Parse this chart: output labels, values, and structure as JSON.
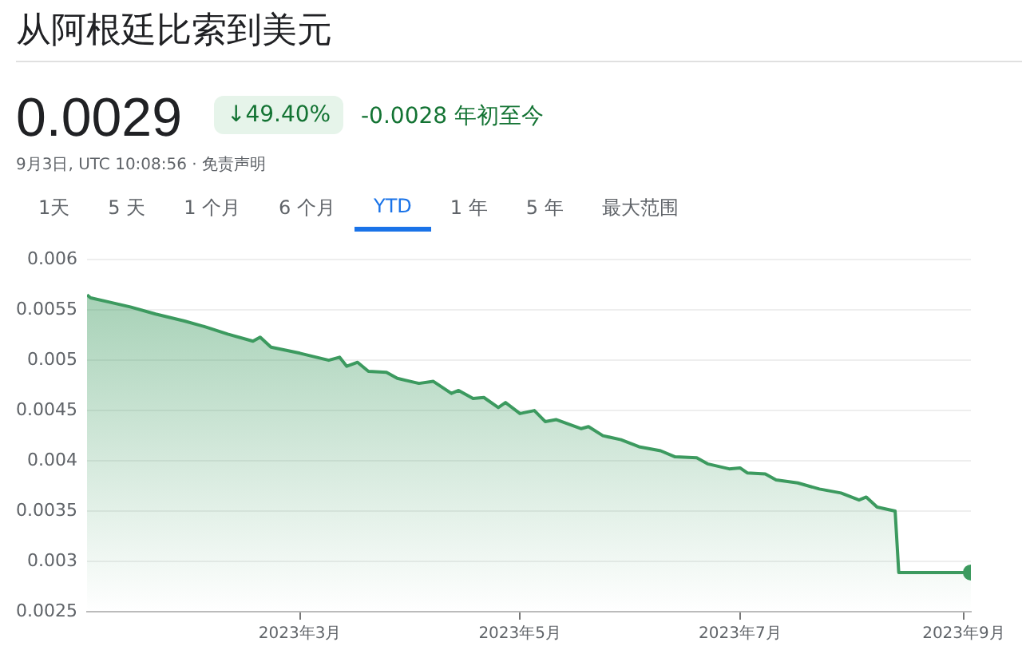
{
  "chart_data": {
    "type": "area",
    "title": "从阿根廷比索到美元",
    "annotations": [
      "0.0029",
      "↓49.40%",
      "-0.0028 年初至今",
      "9月3日, UTC 10:08:56 · 免责声明",
      "1天",
      "5 天",
      "1 个月",
      "6 个月",
      "YTD",
      "1 年",
      "5 年",
      "最大范围"
    ],
    "x": [
      "2023-01-01",
      "2023-01-02",
      "2023-01-07",
      "2023-01-13",
      "2023-01-20",
      "2023-01-28",
      "2023-02-03",
      "2023-02-09",
      "2023-02-16",
      "2023-02-18",
      "2023-02-21",
      "2023-03-01",
      "2023-03-09",
      "2023-03-12",
      "2023-03-14",
      "2023-03-17",
      "2023-03-20",
      "2023-03-25",
      "2023-03-28",
      "2023-04-03",
      "2023-04-07",
      "2023-04-12",
      "2023-04-14",
      "2023-04-18",
      "2023-04-21",
      "2023-04-25",
      "2023-04-27",
      "2023-05-01",
      "2023-05-05",
      "2023-05-08",
      "2023-05-11",
      "2023-05-18",
      "2023-05-20",
      "2023-05-24",
      "2023-05-29",
      "2023-06-03",
      "2023-06-09",
      "2023-06-13",
      "2023-06-19",
      "2023-06-22",
      "2023-06-28",
      "2023-07-01",
      "2023-07-03",
      "2023-07-08",
      "2023-07-11",
      "2023-07-17",
      "2023-07-23",
      "2023-07-29",
      "2023-08-03",
      "2023-08-05",
      "2023-08-08",
      "2023-08-13",
      "2023-08-14",
      "2023-09-03"
    ],
    "series": [
      {
        "color": "#3c9a5f",
        "values": [
          0.00565,
          0.00562,
          0.00558,
          0.00553,
          0.00546,
          0.00539,
          0.00533,
          0.00526,
          0.00519,
          0.00523,
          0.00513,
          0.00507,
          0.005,
          0.00503,
          0.00494,
          0.00498,
          0.00489,
          0.00488,
          0.00482,
          0.00477,
          0.00479,
          0.00467,
          0.0047,
          0.00462,
          0.00463,
          0.00453,
          0.00458,
          0.00447,
          0.0045,
          0.00439,
          0.00441,
          0.00432,
          0.00434,
          0.00425,
          0.00421,
          0.00414,
          0.0041,
          0.00404,
          0.00403,
          0.00397,
          0.00392,
          0.00393,
          0.00388,
          0.00387,
          0.00381,
          0.00378,
          0.00372,
          0.00368,
          0.00361,
          0.00364,
          0.00354,
          0.0035,
          0.00289,
          0.00289
        ]
      }
    ],
    "xlim": [
      "2023-01-01",
      "2023-09-03"
    ],
    "xticks": [
      {
        "value": "2023-03-01",
        "label": "2023年3月"
      },
      {
        "value": "2023-05-01",
        "label": "2023年5月"
      },
      {
        "value": "2023-07-01",
        "label": "2023年7月"
      },
      {
        "value": "2023-09-01",
        "label": "2023年9月"
      }
    ],
    "ylim": [
      0.0025,
      0.006
    ],
    "yticks": [
      0.0025,
      0.003,
      0.0035,
      0.004,
      0.0045,
      0.005,
      0.0055,
      0.006
    ],
    "grid": "y",
    "legend": false
  }
}
